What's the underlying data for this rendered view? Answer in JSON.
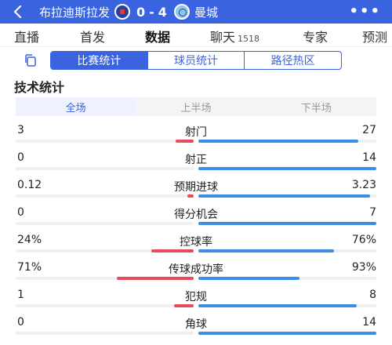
{
  "header": {
    "home_team": "布拉迪斯拉发",
    "away_team": "曼城",
    "home_score": "0",
    "separator": "-",
    "away_score": "4",
    "more_label": "•••",
    "colors": {
      "bar": "#3a63e0"
    }
  },
  "tabs": [
    {
      "label": "直播",
      "active": false
    },
    {
      "label": "首发",
      "active": false
    },
    {
      "label": "数据",
      "active": true
    },
    {
      "label": "聊天",
      "count": "1518",
      "active": false
    },
    {
      "label": "专家",
      "active": false
    },
    {
      "label": "预测",
      "active": false
    }
  ],
  "subtabs": [
    {
      "label": "比赛统计",
      "active": true
    },
    {
      "label": "球员统计",
      "active": false
    },
    {
      "label": "路径热区",
      "active": false
    }
  ],
  "section_title": "技术统计",
  "periods": [
    {
      "label": "全场",
      "active": true
    },
    {
      "label": "上半场",
      "active": false
    },
    {
      "label": "下半场",
      "active": false
    }
  ],
  "stats": [
    {
      "name": "射门",
      "home": "3",
      "away": "27",
      "home_frac": 0.1,
      "away_frac": 0.9
    },
    {
      "name": "射正",
      "home": "0",
      "away": "14",
      "home_frac": 0.0,
      "away_frac": 1.0
    },
    {
      "name": "预期进球",
      "home": "0.12",
      "away": "3.23",
      "home_frac": 0.036,
      "away_frac": 0.964
    },
    {
      "name": "得分机会",
      "home": "0",
      "away": "7",
      "home_frac": 0.0,
      "away_frac": 1.0
    },
    {
      "name": "控球率",
      "home": "24%",
      "away": "76%",
      "home_frac": 0.24,
      "away_frac": 0.76
    },
    {
      "name": "传球成功率",
      "home": "71%",
      "away": "93%",
      "home_frac": 0.43,
      "away_frac": 0.57
    },
    {
      "name": "犯规",
      "home": "1",
      "away": "8",
      "home_frac": 0.11,
      "away_frac": 0.89
    },
    {
      "name": "角球",
      "home": "0",
      "away": "14",
      "home_frac": 0.0,
      "away_frac": 1.0
    }
  ],
  "colors": {
    "home": "#e84a5f",
    "away": "#3a8ee6",
    "accent": "#3a63e0"
  }
}
